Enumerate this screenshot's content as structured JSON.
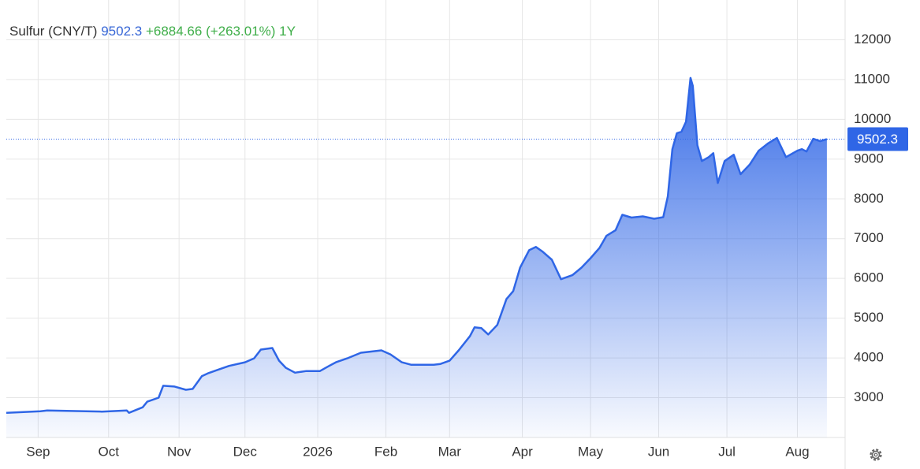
{
  "chart_data": {
    "type": "line",
    "title": "Sulfur (CNY/T)",
    "last": 9502.3,
    "change": "+6884.66",
    "change_pct": "(+263.01%)",
    "period": "1Y",
    "color": "#2f66e6",
    "fill": true,
    "grid": true,
    "x": [
      0,
      15,
      18,
      35,
      42,
      53,
      54,
      60,
      62,
      67,
      69,
      74,
      79,
      82,
      86,
      89,
      93,
      98,
      105,
      109,
      112,
      117,
      120,
      123,
      127,
      132,
      138,
      142,
      145,
      150,
      156,
      165,
      169,
      174,
      178,
      188,
      191,
      195,
      199,
      204,
      206,
      209,
      212,
      216,
      220,
      223,
      226,
      230,
      233,
      236,
      240,
      244,
      249,
      253,
      257,
      261,
      264,
      268,
      271,
      275,
      280,
      285,
      289,
      291,
      293,
      295,
      297,
      299,
      301,
      302,
      304,
      306,
      309,
      311,
      313,
      316,
      320,
      323,
      327,
      331,
      335,
      339,
      343,
      348,
      350,
      352,
      355,
      358,
      361
    ],
    "values": [
      2620,
      2660,
      2680,
      2660,
      2650,
      2680,
      2620,
      2760,
      2900,
      3000,
      3300,
      3280,
      3200,
      3220,
      3540,
      3620,
      3700,
      3800,
      3890,
      3990,
      4210,
      4250,
      3930,
      3750,
      3630,
      3670,
      3670,
      3800,
      3890,
      3990,
      4130,
      4190,
      4090,
      3890,
      3830,
      3830,
      3850,
      3930,
      4190,
      4550,
      4770,
      4750,
      4590,
      4830,
      5480,
      5680,
      6270,
      6710,
      6790,
      6670,
      6470,
      5980,
      6080,
      6270,
      6510,
      6770,
      7070,
      7210,
      7600,
      7530,
      7560,
      7500,
      7540,
      8060,
      9250,
      9650,
      9690,
      9940,
      11040,
      10840,
      9350,
      8950,
      9050,
      9150,
      8400,
      8950,
      9110,
      8620,
      8860,
      9210,
      9390,
      9530,
      9050,
      9210,
      9250,
      9190,
      9510,
      9450,
      9502.3
    ],
    "xlim": [
      0,
      369
    ],
    "xticks": [
      {
        "value": 14,
        "label": "Sep"
      },
      {
        "value": 45,
        "label": "Oct"
      },
      {
        "value": 76,
        "label": "Nov"
      },
      {
        "value": 105,
        "label": "Dec"
      },
      {
        "value": 137,
        "label": "2026"
      },
      {
        "value": 167,
        "label": "Feb"
      },
      {
        "value": 195,
        "label": "Mar"
      },
      {
        "value": 227,
        "label": "Apr"
      },
      {
        "value": 257,
        "label": "May"
      },
      {
        "value": 287,
        "label": "Jun"
      },
      {
        "value": 317,
        "label": "Jul"
      },
      {
        "value": 348,
        "label": "Aug"
      }
    ],
    "ylim": [
      2000,
      13000
    ],
    "yticks": [
      3000,
      4000,
      5000,
      6000,
      7000,
      8000,
      9000,
      10000,
      11000,
      12000
    ]
  }
}
